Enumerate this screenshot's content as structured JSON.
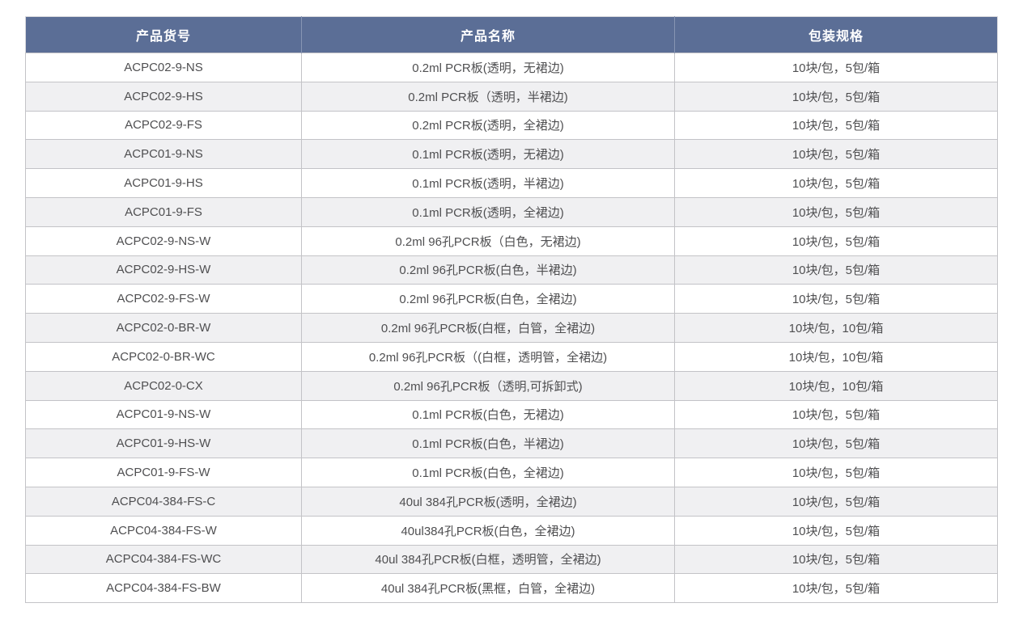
{
  "colors": {
    "header_bg": "#5b6e96",
    "header_text": "#ffffff",
    "row_alt_bg": "#f0f0f2",
    "row_bg": "#ffffff",
    "cell_text": "#4f4f51",
    "border": "#c3c3c7"
  },
  "table": {
    "headers": [
      "产品货号",
      "产品名称",
      "包装规格"
    ],
    "rows": [
      [
        "ACPC02-9-NS",
        "0.2ml PCR板(透明，无裙边)",
        "10块/包，5包/箱"
      ],
      [
        "ACPC02-9-HS",
        "0.2ml PCR板（透明，半裙边)",
        "10块/包，5包/箱"
      ],
      [
        "ACPC02-9-FS",
        "0.2ml PCR板(透明，全裙边)",
        "10块/包，5包/箱"
      ],
      [
        "ACPC01-9-NS",
        "0.1ml PCR板(透明，无裙边)",
        "10块/包，5包/箱"
      ],
      [
        "ACPC01-9-HS",
        "0.1ml PCR板(透明，半裙边)",
        "10块/包，5包/箱"
      ],
      [
        "ACPC01-9-FS",
        "0.1ml PCR板(透明，全裙边)",
        "10块/包，5包/箱"
      ],
      [
        "ACPC02-9-NS-W",
        "0.2ml 96孔PCR板（白色，无裙边)",
        "10块/包，5包/箱"
      ],
      [
        "ACPC02-9-HS-W",
        "0.2ml 96孔PCR板(白色，半裙边)",
        "10块/包，5包/箱"
      ],
      [
        "ACPC02-9-FS-W",
        "0.2ml 96孔PCR板(白色，全裙边)",
        "10块/包，5包/箱"
      ],
      [
        "ACPC02-0-BR-W",
        "0.2ml 96孔PCR板(白框，白管，全裙边)",
        "10块/包，10包/箱"
      ],
      [
        "ACPC02-0-BR-WC",
        "0.2ml 96孔PCR板（(白框，透明管，全裙边)",
        "10块/包，10包/箱"
      ],
      [
        "ACPC02-0-CX",
        "0.2ml 96孔PCR板（透明,可拆卸式)",
        "10块/包，10包/箱"
      ],
      [
        "ACPC01-9-NS-W",
        "0.1ml PCR板(白色，无裙边)",
        "10块/包，5包/箱"
      ],
      [
        "ACPC01-9-HS-W",
        "0.1ml PCR板(白色，半裙边)",
        "10块/包，5包/箱"
      ],
      [
        "ACPC01-9-FS-W",
        "0.1ml PCR板(白色，全裙边)",
        "10块/包，5包/箱"
      ],
      [
        "ACPC04-384-FS-C",
        "40ul 384孔PCR板(透明，全裙边)",
        "10块/包，5包/箱"
      ],
      [
        "ACPC04-384-FS-W",
        "40ul384孔PCR板(白色，全裙边)",
        "10块/包，5包/箱"
      ],
      [
        "ACPC04-384-FS-WC",
        "40ul 384孔PCR板(白框，透明管，全裙边)",
        "10块/包，5包/箱"
      ],
      [
        "ACPC04-384-FS-BW",
        "40ul 384孔PCR板(黑框，白管，全裙边)",
        "10块/包，5包/箱"
      ]
    ]
  }
}
